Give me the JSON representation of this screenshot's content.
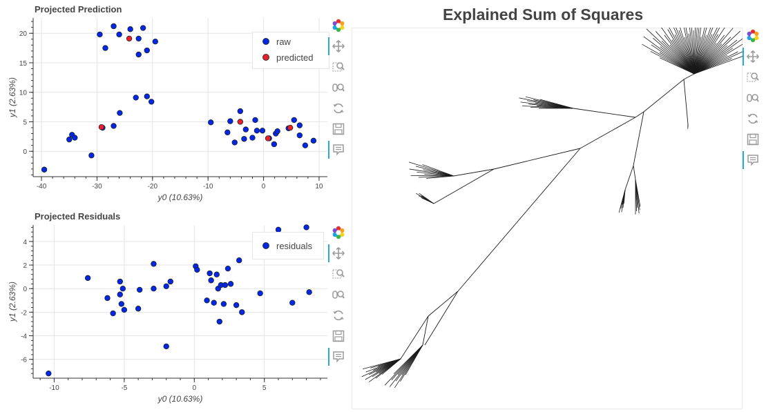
{
  "top_title": "Projected Prediction",
  "bottom_title": "Projected Residuals",
  "tree_title": "Explained Sum of Squares",
  "colors": {
    "raw": "#0026e6",
    "predicted": "#e6212b",
    "residuals": "#0026e6",
    "tree": "#1a1a1a",
    "tool_active": "#26aae1"
  },
  "toolbar_icons": [
    "bokeh-logo-icon",
    "pan-icon",
    "box-zoom-icon",
    "wheel-zoom-icon",
    "reset-icon",
    "save-icon",
    "hover-icon"
  ],
  "chart_data": [
    {
      "type": "scatter",
      "title": "Projected Prediction",
      "xlabel": "y0 (10.63%)",
      "ylabel": "y1 (2.63%)",
      "xlim": [
        -41.5,
        11.5
      ],
      "ylim": [
        -4.3,
        22.6
      ],
      "xticks": [
        -40,
        -30,
        -20,
        -10,
        0,
        10
      ],
      "xtick_labels": [
        "-40",
        "-30",
        "-20",
        "-10",
        "0",
        "10"
      ],
      "yticks": [
        0,
        5,
        10,
        15,
        20
      ],
      "ytick_labels": [
        "0",
        "5",
        "10",
        "15",
        "20"
      ],
      "legend": "top-right",
      "series": [
        {
          "name": "raw",
          "points": [
            [
              -39.5,
              -3.1
            ],
            [
              -35,
              2
            ],
            [
              -34.5,
              2.8
            ],
            [
              -34,
              2.3
            ],
            [
              -31,
              -0.7
            ],
            [
              -29.5,
              19.8
            ],
            [
              -28.5,
              17.5
            ],
            [
              -27,
              21.2
            ],
            [
              -26,
              19.8
            ],
            [
              -24,
              20.7
            ],
            [
              -22.5,
              19.1
            ],
            [
              -22.5,
              16.4
            ],
            [
              -21.7,
              20.9
            ],
            [
              -21,
              17.1
            ],
            [
              -19.5,
              18.6
            ],
            [
              -29,
              4
            ],
            [
              -27,
              4.3
            ],
            [
              -25.9,
              6.5
            ],
            [
              -23,
              9.1
            ],
            [
              -21,
              9.3
            ],
            [
              -20.2,
              8.4
            ],
            [
              -9.5,
              4.9
            ],
            [
              -6.5,
              3.2
            ],
            [
              -6,
              5.1
            ],
            [
              -5.2,
              1.5
            ],
            [
              -4.2,
              6.8
            ],
            [
              -3.2,
              3.7
            ],
            [
              -3.5,
              2.1
            ],
            [
              -2,
              2.3
            ],
            [
              -1.5,
              5.3
            ],
            [
              -1.2,
              3.5
            ],
            [
              -0.2,
              3.5
            ],
            [
              1,
              2.2
            ],
            [
              1.9,
              1.2
            ],
            [
              2.2,
              3
            ],
            [
              2.5,
              3.4
            ],
            [
              4.5,
              3.9
            ],
            [
              5.5,
              5.3
            ],
            [
              6.5,
              4.4
            ],
            [
              6.5,
              2.7
            ],
            [
              7.5,
              1
            ],
            [
              9,
              1.8
            ]
          ]
        },
        {
          "name": "predicted",
          "points": [
            [
              -29.2,
              4.1
            ],
            [
              -24.2,
              19.1
            ],
            [
              -4.2,
              5
            ],
            [
              0.8,
              2.2
            ],
            [
              4.8,
              4
            ]
          ]
        }
      ]
    },
    {
      "type": "scatter",
      "title": "Projected Residuals",
      "xlabel": "y0 (10.63%)",
      "ylabel": "y1 (2.63%)",
      "xlim": [
        -11.5,
        9.5
      ],
      "ylim": [
        -7.6,
        5.4
      ],
      "xticks": [
        -10,
        -5,
        0,
        5
      ],
      "xtick_labels": [
        "-10",
        "-5",
        "0",
        "5"
      ],
      "yticks": [
        -6,
        -4,
        -2,
        0,
        2,
        4
      ],
      "ytick_labels": [
        "-6",
        "-4",
        "-2",
        "0",
        "2",
        "4"
      ],
      "legend": "top-right",
      "series": [
        {
          "name": "residuals",
          "points": [
            [
              -10.4,
              -7.2
            ],
            [
              -7.6,
              0.9
            ],
            [
              -6.2,
              -0.8
            ],
            [
              -5.8,
              -2.1
            ],
            [
              -5.3,
              0.6
            ],
            [
              -5.3,
              -0.5
            ],
            [
              -5.2,
              -1.3
            ],
            [
              -5.1,
              0
            ],
            [
              -5,
              -1.8
            ],
            [
              -4,
              -1.7
            ],
            [
              -3.9,
              -0.1
            ],
            [
              -2.9,
              2.1
            ],
            [
              -2.9,
              0
            ],
            [
              -2,
              -4.9
            ],
            [
              -2,
              0.2
            ],
            [
              -1.7,
              0.6
            ],
            [
              0.1,
              1.9
            ],
            [
              0.2,
              1.6
            ],
            [
              0.9,
              -1
            ],
            [
              1.1,
              1.3
            ],
            [
              1.2,
              0.7
            ],
            [
              1.4,
              -1.2
            ],
            [
              1.6,
              1.2
            ],
            [
              1.7,
              0
            ],
            [
              1.8,
              -2.8
            ],
            [
              1.9,
              0.3
            ],
            [
              2.1,
              -1.3
            ],
            [
              2.2,
              0.3
            ],
            [
              2.4,
              1.7
            ],
            [
              2.6,
              0.4
            ],
            [
              3,
              -1.4
            ],
            [
              3.2,
              2.4
            ],
            [
              3.4,
              -2
            ],
            [
              4.7,
              -0.4
            ],
            [
              6,
              5
            ],
            [
              7,
              -1.2
            ],
            [
              8,
              5.2
            ],
            [
              8.2,
              -0.3
            ]
          ]
        }
      ]
    },
    {
      "type": "tree",
      "title": "Explained Sum of Squares"
    }
  ]
}
